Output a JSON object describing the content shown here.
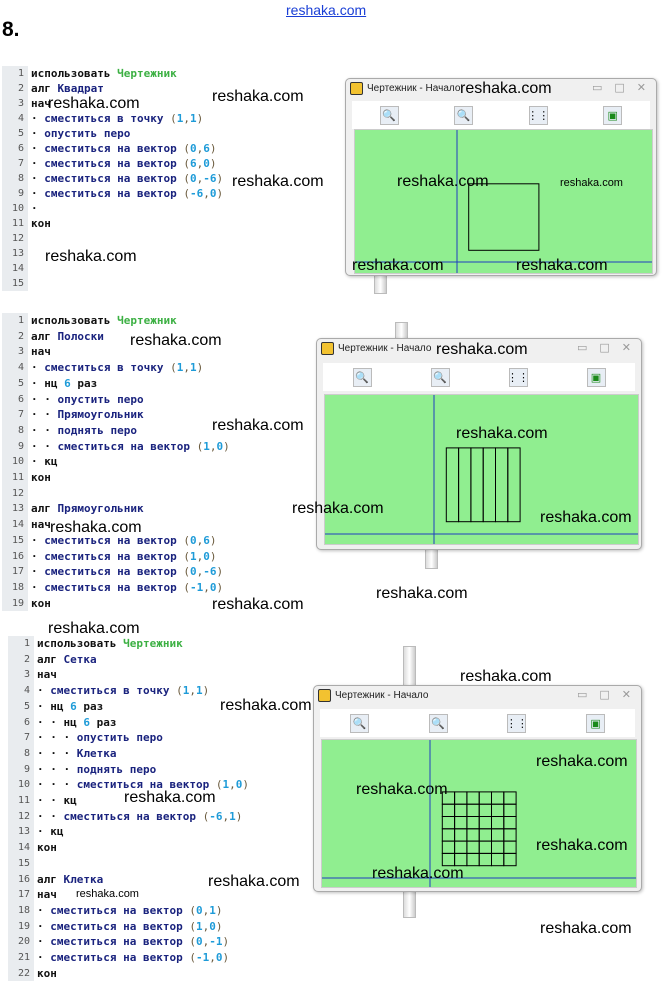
{
  "header_link": "reshaka.com",
  "task_number": "8.",
  "watermark": "reshaka.com",
  "window": {
    "title": "Чертежник - Начало",
    "buttons": [
      "zoom-in-icon",
      "zoom-out-icon",
      "grid-icon",
      "fit-icon"
    ]
  },
  "colors": {
    "canvas": "#90ee90",
    "axis": "#1f3fbf",
    "drawing": "#000000",
    "keyword_lib": "#3cb043",
    "keyword_name": "#1a237e",
    "number": "#1e9bd8"
  },
  "programs": [
    {
      "lines": [
        [
          [
            "использовать ",
            "kw"
          ],
          [
            "Чертежник",
            "lib"
          ]
        ],
        [
          [
            "алг ",
            "kw"
          ],
          [
            "Квадрат",
            "name"
          ]
        ],
        [
          [
            "нач",
            "kw"
          ]
        ],
        [
          [
            "· ",
            "dot"
          ],
          [
            "сместиться в точку ",
            "name"
          ],
          [
            "(",
            "p"
          ],
          [
            "1",
            "num"
          ],
          [
            ",",
            "p"
          ],
          [
            "1",
            "num"
          ],
          [
            ")",
            "p"
          ]
        ],
        [
          [
            "· ",
            "dot"
          ],
          [
            "опустить перо",
            "name"
          ]
        ],
        [
          [
            "· ",
            "dot"
          ],
          [
            "сместиться на вектор ",
            "name"
          ],
          [
            "(",
            "p"
          ],
          [
            "0",
            "num"
          ],
          [
            ",",
            "p"
          ],
          [
            "6",
            "num"
          ],
          [
            ")",
            "p"
          ]
        ],
        [
          [
            "· ",
            "dot"
          ],
          [
            "сместиться на вектор ",
            "name"
          ],
          [
            "(",
            "p"
          ],
          [
            "6",
            "num"
          ],
          [
            ",",
            "p"
          ],
          [
            "0",
            "num"
          ],
          [
            ")",
            "p"
          ]
        ],
        [
          [
            "· ",
            "dot"
          ],
          [
            "сместиться на вектор ",
            "name"
          ],
          [
            "(",
            "p"
          ],
          [
            "0",
            "num"
          ],
          [
            ",",
            "p"
          ],
          [
            "-6",
            "num"
          ],
          [
            ")",
            "p"
          ]
        ],
        [
          [
            "· ",
            "dot"
          ],
          [
            "сместиться на вектор ",
            "name"
          ],
          [
            "(",
            "p"
          ],
          [
            "-6",
            "num"
          ],
          [
            ",",
            "p"
          ],
          [
            "0",
            "num"
          ],
          [
            ")",
            "p"
          ]
        ],
        [
          [
            "·",
            "dot"
          ]
        ],
        [
          [
            "кон",
            "kw"
          ]
        ],
        [],
        [],
        [],
        []
      ]
    },
    {
      "lines": [
        [
          [
            "использовать ",
            "kw"
          ],
          [
            "Чертежник",
            "lib"
          ]
        ],
        [
          [
            "алг ",
            "kw"
          ],
          [
            "Полоски",
            "name"
          ]
        ],
        [
          [
            "нач",
            "kw"
          ]
        ],
        [
          [
            "· ",
            "dot"
          ],
          [
            "сместиться в точку ",
            "name"
          ],
          [
            "(",
            "p"
          ],
          [
            "1",
            "num"
          ],
          [
            ",",
            "p"
          ],
          [
            "1",
            "num"
          ],
          [
            ")",
            "p"
          ]
        ],
        [
          [
            "· ",
            "dot"
          ],
          [
            "нц ",
            "kw"
          ],
          [
            "6",
            "num"
          ],
          [
            " раз",
            "kw"
          ]
        ],
        [
          [
            "· · ",
            "dot"
          ],
          [
            "опустить перо",
            "name"
          ]
        ],
        [
          [
            "· · ",
            "dot"
          ],
          [
            "Прямоугольник",
            "name"
          ]
        ],
        [
          [
            "· · ",
            "dot"
          ],
          [
            "поднять перо",
            "name"
          ]
        ],
        [
          [
            "· · ",
            "dot"
          ],
          [
            "сместиться на вектор ",
            "name"
          ],
          [
            "(",
            "p"
          ],
          [
            "1",
            "num"
          ],
          [
            ",",
            "p"
          ],
          [
            "0",
            "num"
          ],
          [
            ")",
            "p"
          ]
        ],
        [
          [
            "· ",
            "dot"
          ],
          [
            "кц",
            "kw"
          ]
        ],
        [
          [
            "кон",
            "kw"
          ]
        ],
        [],
        [
          [
            "алг ",
            "kw"
          ],
          [
            "Прямоугольник",
            "name"
          ]
        ],
        [
          [
            "нач",
            "kw"
          ]
        ],
        [
          [
            "· ",
            "dot"
          ],
          [
            "сместиться на вектор ",
            "name"
          ],
          [
            "(",
            "p"
          ],
          [
            "0",
            "num"
          ],
          [
            ",",
            "p"
          ],
          [
            "6",
            "num"
          ],
          [
            ")",
            "p"
          ]
        ],
        [
          [
            "· ",
            "dot"
          ],
          [
            "сместиться на вектор ",
            "name"
          ],
          [
            "(",
            "p"
          ],
          [
            "1",
            "num"
          ],
          [
            ",",
            "p"
          ],
          [
            "0",
            "num"
          ],
          [
            ")",
            "p"
          ]
        ],
        [
          [
            "· ",
            "dot"
          ],
          [
            "сместиться на вектор ",
            "name"
          ],
          [
            "(",
            "p"
          ],
          [
            "0",
            "num"
          ],
          [
            ",",
            "p"
          ],
          [
            "-6",
            "num"
          ],
          [
            ")",
            "p"
          ]
        ],
        [
          [
            "· ",
            "dot"
          ],
          [
            "сместиться на вектор ",
            "name"
          ],
          [
            "(",
            "p"
          ],
          [
            "-1",
            "num"
          ],
          [
            ",",
            "p"
          ],
          [
            "0",
            "num"
          ],
          [
            ")",
            "p"
          ]
        ],
        [
          [
            "кон",
            "kw"
          ]
        ]
      ]
    },
    {
      "lines": [
        [
          [
            "использовать ",
            "kw"
          ],
          [
            "Чертежник",
            "lib"
          ]
        ],
        [
          [
            "алг ",
            "kw"
          ],
          [
            "Сетка",
            "name"
          ]
        ],
        [
          [
            "нач",
            "kw"
          ]
        ],
        [
          [
            "· ",
            "dot"
          ],
          [
            "сместиться в точку ",
            "name"
          ],
          [
            "(",
            "p"
          ],
          [
            "1",
            "num"
          ],
          [
            ",",
            "p"
          ],
          [
            "1",
            "num"
          ],
          [
            ")",
            "p"
          ]
        ],
        [
          [
            "· ",
            "dot"
          ],
          [
            "нц ",
            "kw"
          ],
          [
            "6",
            "num"
          ],
          [
            " раз",
            "kw"
          ]
        ],
        [
          [
            "· · ",
            "dot"
          ],
          [
            "нц ",
            "kw"
          ],
          [
            "6",
            "num"
          ],
          [
            " раз",
            "kw"
          ]
        ],
        [
          [
            "· · · ",
            "dot"
          ],
          [
            "опустить перо",
            "name"
          ]
        ],
        [
          [
            "· · · ",
            "dot"
          ],
          [
            "Клетка",
            "name"
          ]
        ],
        [
          [
            "· · · ",
            "dot"
          ],
          [
            "поднять перо",
            "name"
          ]
        ],
        [
          [
            "· · · ",
            "dot"
          ],
          [
            "сместиться на вектор ",
            "name"
          ],
          [
            "(",
            "p"
          ],
          [
            "1",
            "num"
          ],
          [
            ",",
            "p"
          ],
          [
            "0",
            "num"
          ],
          [
            ")",
            "p"
          ]
        ],
        [
          [
            "· · ",
            "dot"
          ],
          [
            "кц",
            "kw"
          ]
        ],
        [
          [
            "· · ",
            "dot"
          ],
          [
            "сместиться на вектор ",
            "name"
          ],
          [
            "(",
            "p"
          ],
          [
            "-6",
            "num"
          ],
          [
            ",",
            "p"
          ],
          [
            "1",
            "num"
          ],
          [
            ")",
            "p"
          ]
        ],
        [
          [
            "· ",
            "dot"
          ],
          [
            "кц",
            "kw"
          ]
        ],
        [
          [
            "кон",
            "kw"
          ]
        ],
        [],
        [
          [
            "алг ",
            "kw"
          ],
          [
            "Клетка",
            "name"
          ]
        ],
        [
          [
            "нач",
            "kw"
          ]
        ],
        [
          [
            "· ",
            "dot"
          ],
          [
            "сместиться на вектор ",
            "name"
          ],
          [
            "(",
            "p"
          ],
          [
            "0",
            "num"
          ],
          [
            ",",
            "p"
          ],
          [
            "1",
            "num"
          ],
          [
            ")",
            "p"
          ]
        ],
        [
          [
            "· ",
            "dot"
          ],
          [
            "сместиться на вектор ",
            "name"
          ],
          [
            "(",
            "p"
          ],
          [
            "1",
            "num"
          ],
          [
            ",",
            "p"
          ],
          [
            "0",
            "num"
          ],
          [
            ")",
            "p"
          ]
        ],
        [
          [
            "· ",
            "dot"
          ],
          [
            "сместиться на вектор ",
            "name"
          ],
          [
            "(",
            "p"
          ],
          [
            "0",
            "num"
          ],
          [
            ",",
            "p"
          ],
          [
            "-1",
            "num"
          ],
          [
            ")",
            "p"
          ]
        ],
        [
          [
            "· ",
            "dot"
          ],
          [
            "сместиться на вектор ",
            "name"
          ],
          [
            "(",
            "p"
          ],
          [
            "-1",
            "num"
          ],
          [
            ",",
            "p"
          ],
          [
            "0",
            "num"
          ],
          [
            ")",
            "p"
          ]
        ],
        [
          [
            "кон",
            "kw"
          ]
        ]
      ]
    }
  ]
}
